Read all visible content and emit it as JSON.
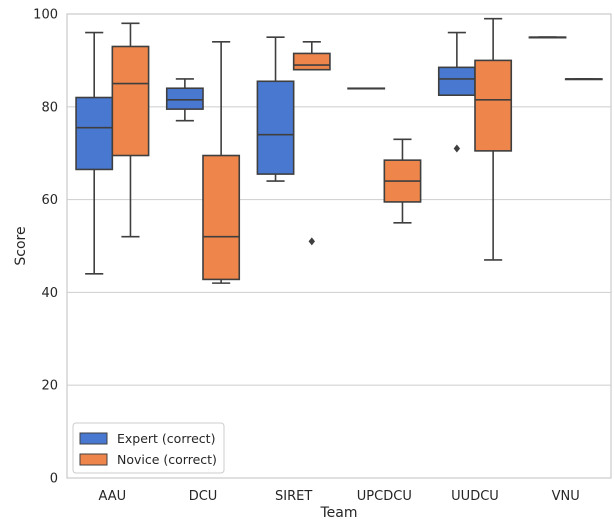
{
  "chart_data": {
    "type": "boxplot",
    "xlabel": "Team",
    "ylabel": "Score",
    "ylim": [
      0,
      100
    ],
    "yticks": [
      0,
      20,
      40,
      60,
      80,
      100
    ],
    "grid": "horizontal",
    "legend_position": "lower-left",
    "categories": [
      "AAU",
      "DCU",
      "SIRET",
      "UPCDCU",
      "UUDCU",
      "VNU"
    ],
    "series": [
      {
        "name": "Expert (correct)",
        "color": "#4c72b0",
        "fill": "#4878d0",
        "boxes": [
          {
            "whislo": 44,
            "q1": 66.5,
            "med": 75.5,
            "q3": 82,
            "whishi": 96,
            "fliers": []
          },
          {
            "whislo": 77,
            "q1": 79.5,
            "med": 81.5,
            "q3": 84,
            "whishi": 86,
            "fliers": []
          },
          {
            "whislo": 64,
            "q1": 65.5,
            "med": 74,
            "q3": 85.5,
            "whishi": 95,
            "fliers": []
          },
          {
            "whislo": 84,
            "q1": 84,
            "med": 84,
            "q3": 84,
            "whishi": 84,
            "fliers": []
          },
          {
            "whislo": 82.5,
            "q1": 82.5,
            "med": 86,
            "q3": 88.5,
            "whishi": 96,
            "fliers": [
              71
            ]
          },
          {
            "whislo": 95,
            "q1": 95,
            "med": 95,
            "q3": 95,
            "whishi": 95,
            "fliers": []
          }
        ]
      },
      {
        "name": "Novice (correct)",
        "color": "#dd8452",
        "fill": "#ee854a",
        "boxes": [
          {
            "whislo": 52,
            "q1": 69.5,
            "med": 85,
            "q3": 93,
            "whishi": 98,
            "fliers": []
          },
          {
            "whislo": 42,
            "q1": 42.8,
            "med": 52,
            "q3": 69.5,
            "whishi": 94,
            "fliers": []
          },
          {
            "whislo": 88,
            "q1": 88,
            "med": 89,
            "q3": 91.5,
            "whishi": 94,
            "fliers": [
              51
            ]
          },
          {
            "whislo": 55,
            "q1": 59.5,
            "med": 64,
            "q3": 68.5,
            "whishi": 73,
            "fliers": []
          },
          {
            "whislo": 47,
            "q1": 70.5,
            "med": 81.5,
            "q3": 90,
            "whishi": 99,
            "fliers": []
          },
          {
            "whislo": 86,
            "q1": 86,
            "med": 86,
            "q3": 86,
            "whishi": 86,
            "fliers": []
          }
        ]
      }
    ]
  }
}
